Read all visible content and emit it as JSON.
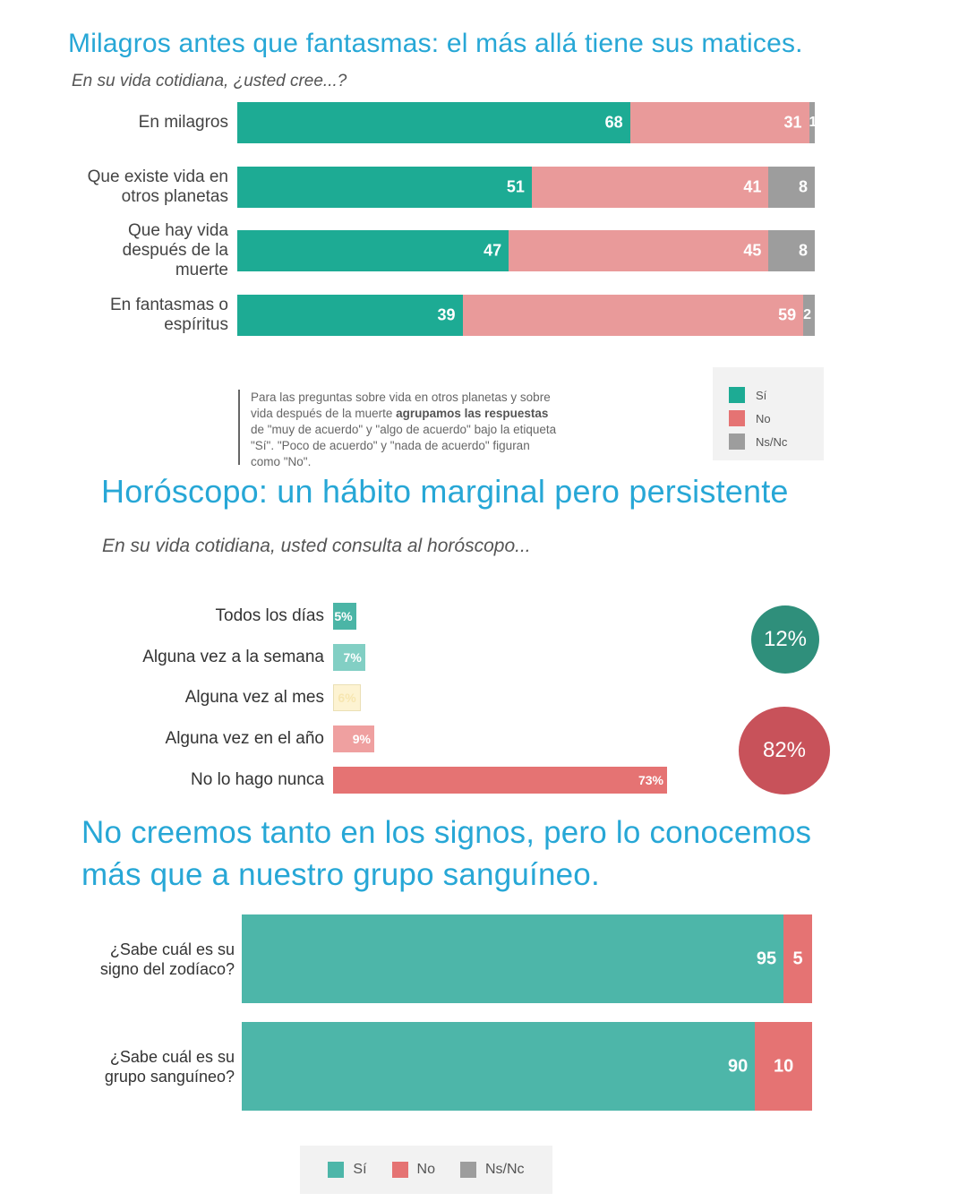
{
  "section1": {
    "title": "Milagros antes que fantasmas: el más allá tiene sus matices.",
    "subtitle": "En su vida cotidiana, ¿usted cree...?",
    "note_parts": [
      {
        "text": "Para las preguntas sobre vida en otros planetas y sobre vida después de la muerte ",
        "bold": false
      },
      {
        "text": "agrupamos las respuestas",
        "bold": true
      },
      {
        "text": " de \"muy de acuerdo\" y \"algo de acuerdo\" bajo la etiqueta \"Sí\". \"Poco de acuerdo\" y \"nada de acuerdo\" figuran como \"No\".",
        "bold": false
      }
    ],
    "legend": [
      "Sí",
      "No",
      "Ns/Nc"
    ]
  },
  "section2": {
    "title": "Horóscopo: un hábito marginal pero persistente",
    "subtitle": "En su vida cotidiana, usted consulta al horóscopo...",
    "circle_top": "12%",
    "circle_bottom": "82%"
  },
  "section3": {
    "title_line1": "No creemos tanto en los signos, pero lo conocemos",
    "title_line2": "más que a nuestro grupo sanguíneo.",
    "legend": [
      "Sí",
      "No",
      "Ns/Nc"
    ]
  },
  "colors": {
    "teal": "#1dab94",
    "pink": "#e99a9a",
    "gray": "#9d9d9d",
    "title_blue": "#27a7d6",
    "h_teal_dark": "#4bb5a6",
    "h_teal_light": "#82cfc4",
    "h_cream": "#fdf3d2",
    "h_pink_light": "#efa0a0",
    "h_red": "#e57373",
    "circle_teal": "#2f8f7b",
    "circle_red": "#c8525a",
    "b_teal": "#4db6a9",
    "b_red": "#e57373"
  },
  "chart_data": [
    {
      "type": "bar",
      "orientation": "horizontal-stacked",
      "title": "Milagros antes que fantasmas: el más allá tiene sus matices.",
      "subtitle": "En su vida cotidiana, ¿usted cree...?",
      "categories": [
        "En milagros",
        "Que existe vida en otros planetas",
        "Que hay vida después de la muerte",
        "En fantasmas o espíritus"
      ],
      "category_lines": [
        [
          "En milagros"
        ],
        [
          "Que existe vida en",
          "otros planetas"
        ],
        [
          "Que hay vida",
          "después de la",
          "muerte"
        ],
        [
          "En fantasmas o",
          "espíritus"
        ]
      ],
      "series": [
        {
          "name": "Sí",
          "values": [
            68,
            51,
            47,
            39
          ]
        },
        {
          "name": "No",
          "values": [
            31,
            41,
            45,
            59
          ]
        },
        {
          "name": "Ns/Nc",
          "values": [
            1,
            8,
            8,
            2
          ]
        }
      ],
      "xlim": [
        0,
        100
      ]
    },
    {
      "type": "bar",
      "orientation": "horizontal",
      "title": "Horóscopo: un hábito marginal pero persistente",
      "subtitle": "En su vida cotidiana, usted consulta al horóscopo...",
      "categories": [
        "Todos los días",
        "Alguna vez a la semana",
        "Alguna vez al mes",
        "Alguna vez en el año",
        "No lo hago nunca"
      ],
      "values": [
        5,
        7,
        6,
        9,
        73
      ],
      "value_labels": [
        "5%",
        "7%",
        "6%",
        "9%",
        "73%"
      ],
      "annotations": [
        "12%",
        "82%"
      ]
    },
    {
      "type": "bar",
      "orientation": "horizontal-stacked",
      "title": "No creemos tanto en los signos, pero lo conocemos más que a nuestro grupo sanguíneo.",
      "categories": [
        "¿Sabe cuál es su signo del zodíaco?",
        "¿Sabe cuál es su grupo sanguíneo?"
      ],
      "category_lines": [
        [
          "¿Sabe cuál es su",
          "signo del zodíaco?"
        ],
        [
          "¿Sabe cuál es su",
          "grupo sanguíneo?"
        ]
      ],
      "series": [
        {
          "name": "Sí",
          "values": [
            95,
            90
          ]
        },
        {
          "name": "No",
          "values": [
            5,
            10
          ]
        }
      ],
      "xlim": [
        0,
        100
      ]
    }
  ]
}
